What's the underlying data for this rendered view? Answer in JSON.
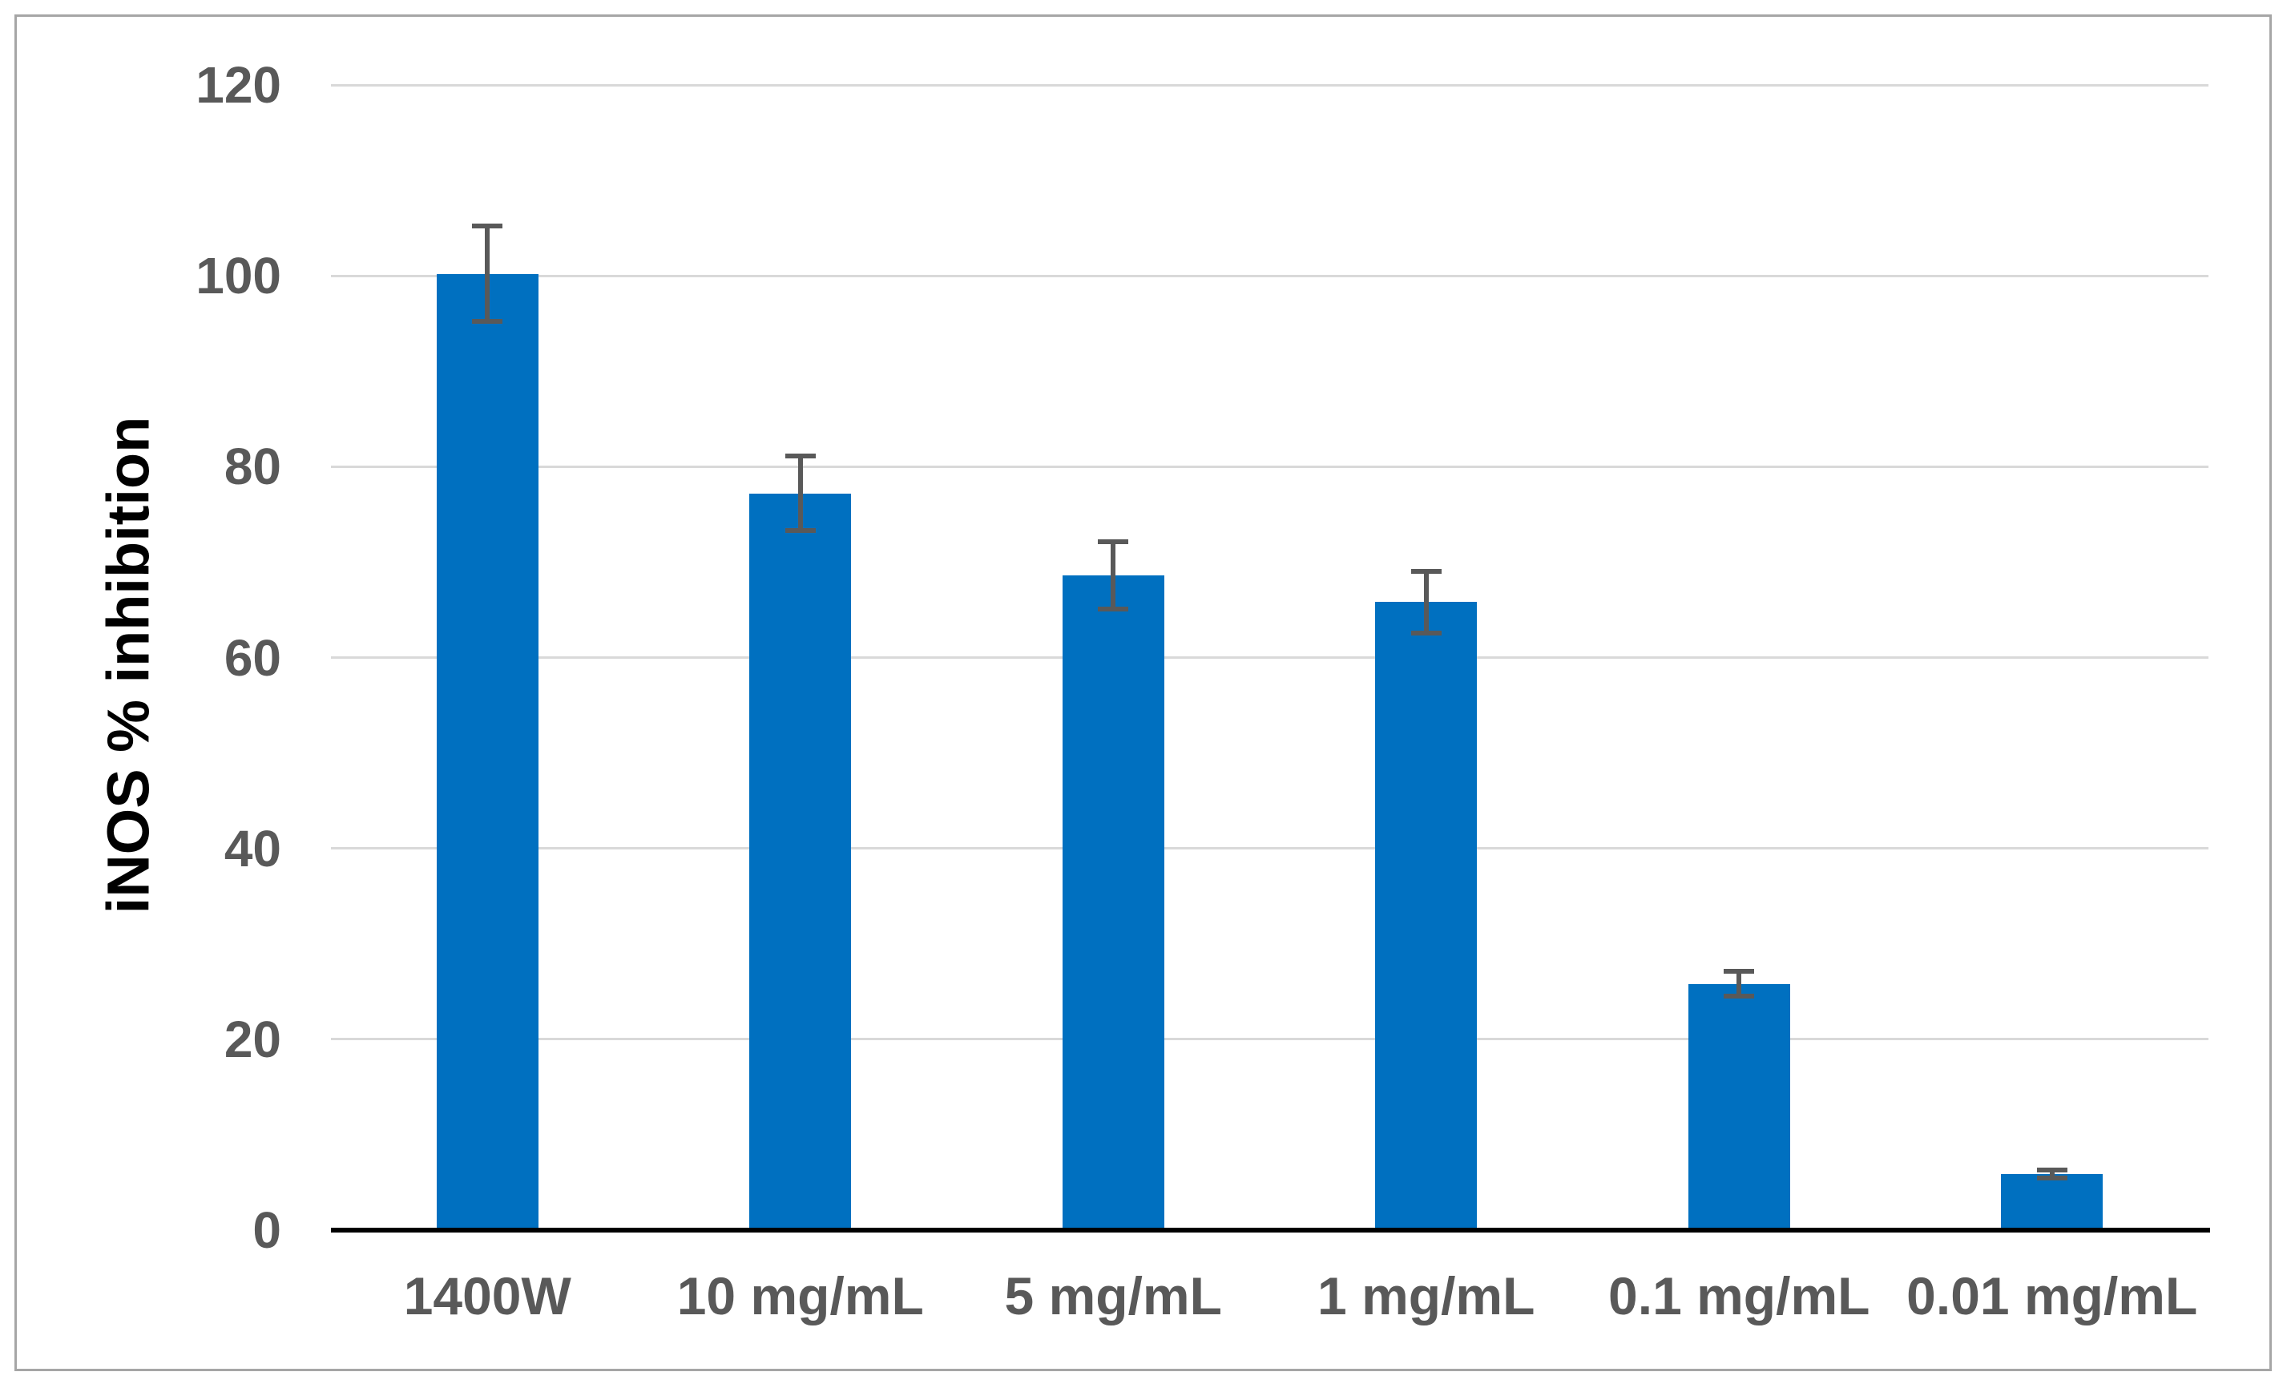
{
  "chart_data": {
    "type": "bar",
    "title": "",
    "xlabel": "",
    "ylabel": "iNOS % inhibition",
    "categories": [
      "1400W",
      "10 mg/mL",
      "5 mg/mL",
      "1 mg/mL",
      "0.1 mg/mL",
      "0.01 mg/mL"
    ],
    "series": [
      {
        "name": "iNOS % inhibition",
        "values": [
          100.2,
          77.2,
          68.6,
          65.8,
          25.8,
          5.9
        ],
        "error_bars": [
          5.0,
          3.9,
          3.5,
          3.2,
          1.3,
          0.4
        ]
      }
    ],
    "ylim": [
      0,
      120
    ],
    "yticks": [
      0,
      20,
      40,
      60,
      80,
      100,
      120
    ],
    "grid": "horizontal-on",
    "legend": "none",
    "colors": {
      "bar": "#0070C0",
      "error_bar": "#595959",
      "tick_label": "#595959",
      "gridline": "#D9D9D9",
      "axis_line": "#000000",
      "axis_title": "#000000",
      "frame_border": "#A6A6A6",
      "background": "#FFFFFF"
    }
  }
}
